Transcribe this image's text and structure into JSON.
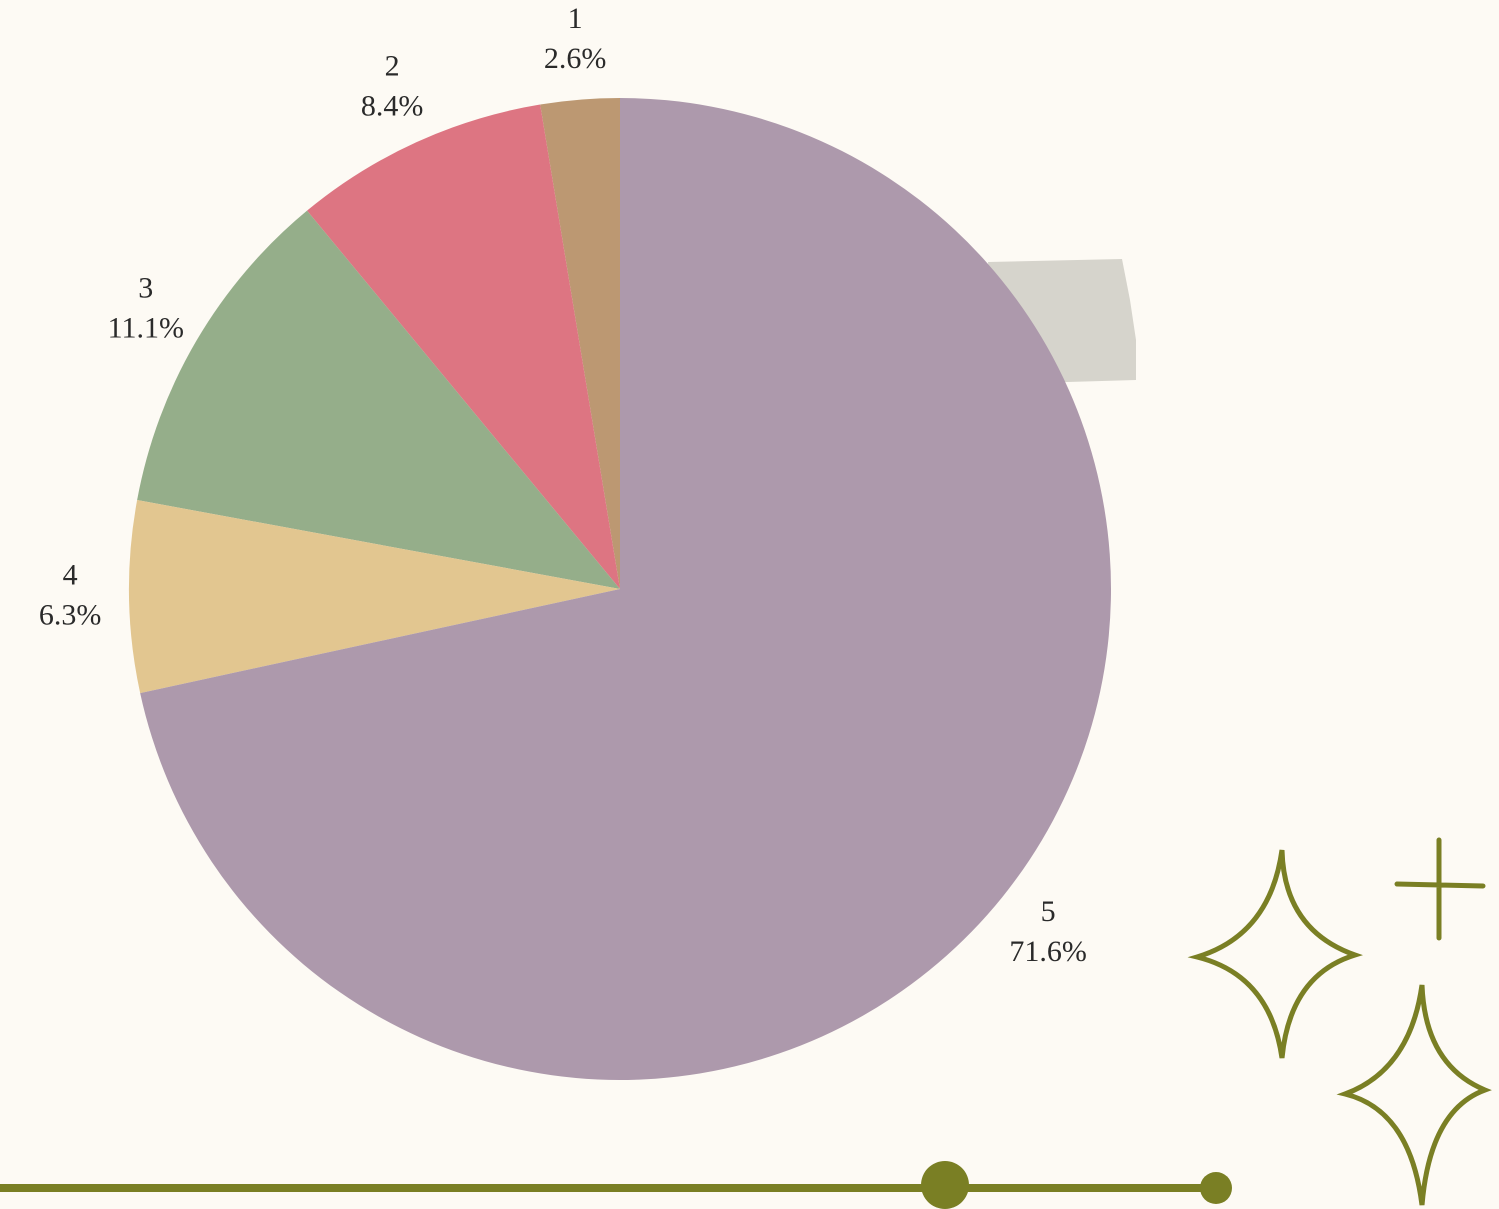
{
  "chart_data": {
    "type": "pie",
    "categories": [
      "1",
      "2",
      "3",
      "4",
      "5"
    ],
    "values": [
      2.6,
      8.4,
      11.1,
      6.3,
      71.6
    ],
    "value_labels": [
      "2.6%",
      "8.4%",
      "11.1%",
      "6.3%",
      "71.6%"
    ],
    "colors": [
      "#bc9872",
      "#dd7582",
      "#95ae8a",
      "#e2c690",
      "#ad99ac"
    ],
    "direction": "counterclockwise"
  }
}
